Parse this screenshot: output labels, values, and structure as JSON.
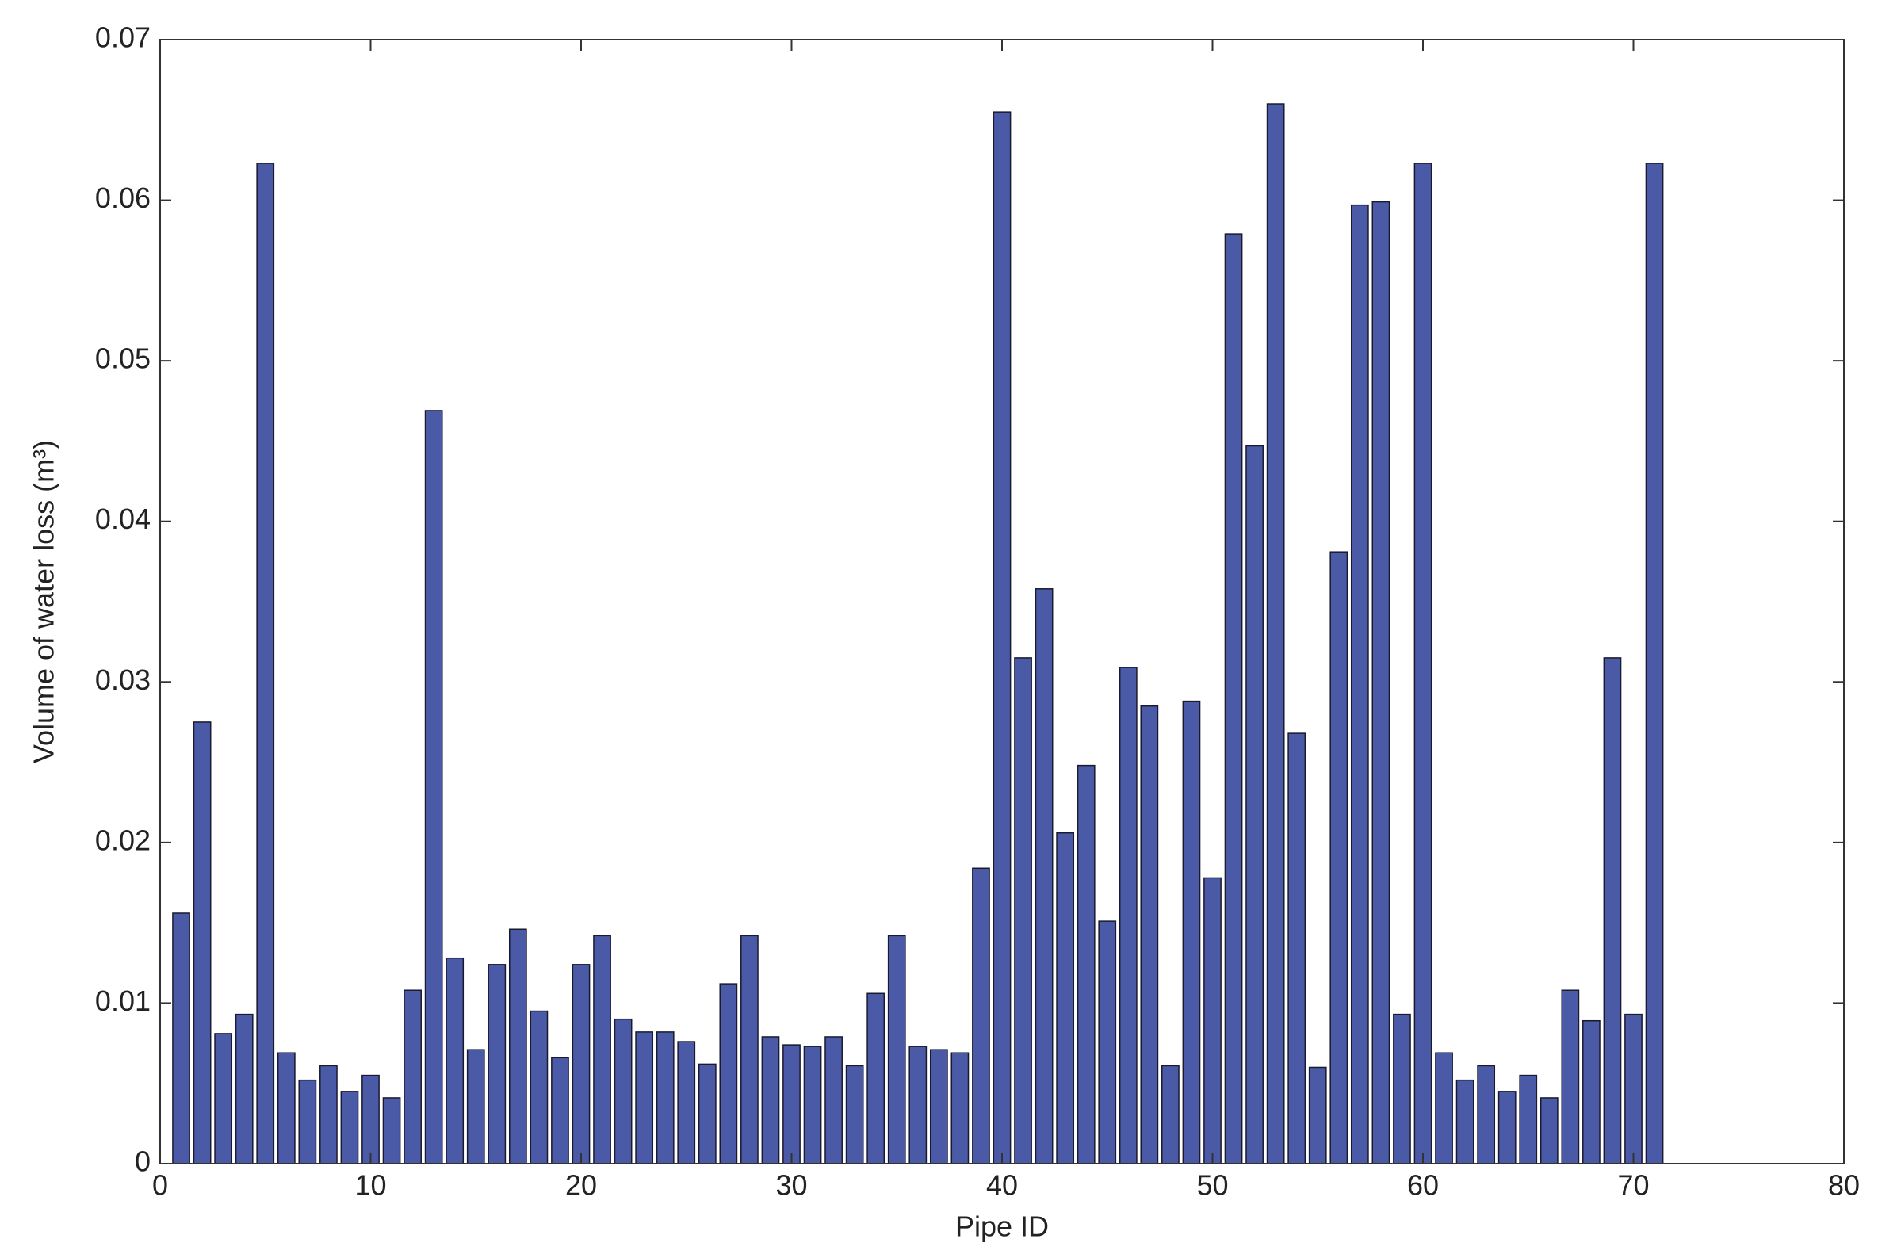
{
  "chart_data": {
    "type": "bar",
    "x_label": "Pipe ID",
    "y_label": "Volume of water loss (m³)",
    "x": [
      1,
      2,
      3,
      4,
      5,
      6,
      7,
      8,
      9,
      10,
      11,
      12,
      13,
      14,
      15,
      16,
      17,
      18,
      19,
      20,
      21,
      22,
      23,
      24,
      25,
      26,
      27,
      28,
      29,
      30,
      31,
      32,
      33,
      34,
      35,
      36,
      37,
      38,
      39,
      40,
      41,
      42,
      43,
      44,
      45,
      46,
      47,
      48,
      49,
      50,
      51,
      52,
      53,
      54,
      55,
      56,
      57,
      58,
      59,
      60,
      61,
      62,
      63,
      64,
      65,
      66,
      67,
      68,
      69,
      70,
      71
    ],
    "values": [
      0.0156,
      0.0275,
      0.0081,
      0.0093,
      0.0623,
      0.0069,
      0.0052,
      0.0061,
      0.0045,
      0.0055,
      0.0041,
      0.0108,
      0.0469,
      0.0128,
      0.0071,
      0.0124,
      0.0146,
      0.0095,
      0.0066,
      0.0124,
      0.0142,
      0.009,
      0.0082,
      0.0082,
      0.0076,
      0.0062,
      0.0112,
      0.0142,
      0.0079,
      0.0074,
      0.0073,
      0.0079,
      0.0061,
      0.0106,
      0.0142,
      0.0073,
      0.0071,
      0.0069,
      0.0184,
      0.0655,
      0.0315,
      0.0358,
      0.0206,
      0.0248,
      0.0151,
      0.0309,
      0.0285,
      0.0061,
      0.0288,
      0.0178,
      0.0579,
      0.0447,
      0.066,
      0.0268,
      0.006,
      0.0381,
      0.0597,
      0.0599,
      0.0093,
      0.0623,
      0.0069,
      0.0052,
      0.0061,
      0.0045,
      0.0055,
      0.0041,
      0.0108,
      0.0089,
      0.0315,
      0.0093,
      0.0623
    ],
    "color": "#4a5aa6",
    "xlim": [
      0,
      80
    ],
    "xticks": [
      0,
      10,
      20,
      30,
      40,
      50,
      60,
      70,
      80
    ],
    "ylim": [
      0,
      0.07
    ],
    "yticks": [
      0,
      0.01,
      0.02,
      0.03,
      0.04,
      0.05,
      0.06,
      0.07
    ],
    "grid": false
  }
}
